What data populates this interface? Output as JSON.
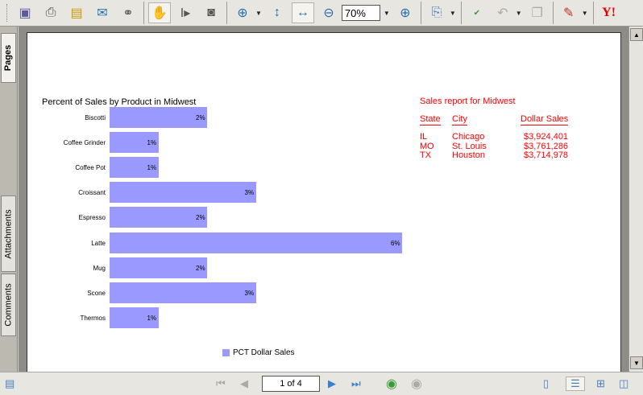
{
  "toolbar": {
    "buttons": [
      "save-icon",
      "print-icon",
      "organizer-icon",
      "email-icon",
      "search-binoculars-icon",
      "hand-tool-icon",
      "select-text-icon",
      "snapshot-icon",
      "zoom-in-tool-icon",
      "fit-page-icon",
      "fit-width-icon",
      "zoom-out-icon",
      "zoom-in-icon",
      "rotate-icon",
      "spellcheck-icon",
      "undo-icon",
      "copy-icon",
      "sign-pen-icon",
      "yahoo-icon"
    ],
    "zoom_value": "70%",
    "yahoo_label": "Y!"
  },
  "sidebar": {
    "tabs": [
      {
        "label": "Pages"
      },
      {
        "label": "Attachments"
      },
      {
        "label": "Comments"
      }
    ]
  },
  "statusbar": {
    "page_display": "1 of 4"
  },
  "colors": {
    "bar": "#9999ff",
    "report_text": "#ff0000"
  },
  "chart_data": {
    "type": "bar",
    "orientation": "horizontal",
    "title": "Percent of Sales by Product in Midwest",
    "categories": [
      "Biscotti",
      "Coffee Grinder",
      "Coffee Pot",
      "Croissant",
      "Espresso",
      "Latte",
      "Mug",
      "Scone",
      "Thermos"
    ],
    "series": [
      {
        "name": "PCT Dollar Sales",
        "values": [
          2,
          1,
          1,
          3,
          2,
          6,
          2,
          3,
          1
        ],
        "labels": [
          "2%",
          "1%",
          "1%",
          "3%",
          "2%",
          "6%",
          "2%",
          "3%",
          "1%"
        ]
      }
    ],
    "legend": "bottom",
    "grid": false
  },
  "report": {
    "title": "Sales report for Midwest",
    "headers": [
      "State",
      "City",
      "Dollar Sales"
    ],
    "rows": [
      [
        "IL",
        "Chicago",
        "$3,924,401"
      ],
      [
        "MO",
        "St. Louis",
        "$3,761,286"
      ],
      [
        "TX",
        "Houston",
        "$3,714,978"
      ]
    ]
  }
}
